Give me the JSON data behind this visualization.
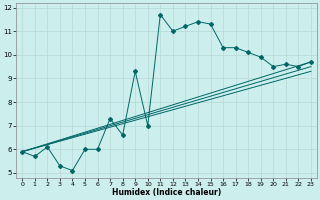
{
  "xlabel": "Humidex (Indice chaleur)",
  "bg_color": "#cceeed",
  "line_color": "#006666",
  "grid_color": "#b8d8d8",
  "xlim": [
    -0.5,
    23.5
  ],
  "ylim": [
    4.8,
    12.2
  ],
  "xticks": [
    0,
    1,
    2,
    3,
    4,
    5,
    6,
    7,
    8,
    9,
    10,
    11,
    12,
    13,
    14,
    15,
    16,
    17,
    18,
    19,
    20,
    21,
    22,
    23
  ],
  "yticks": [
    5,
    6,
    7,
    8,
    9,
    10,
    11,
    12
  ],
  "main_series_x": [
    0,
    1,
    2,
    3,
    4,
    5,
    6,
    7,
    8,
    9,
    10,
    11,
    12,
    13,
    14,
    15,
    16,
    17,
    18,
    19,
    20,
    21,
    22,
    23
  ],
  "main_series_y": [
    5.9,
    5.7,
    6.1,
    5.3,
    5.1,
    6.0,
    6.0,
    7.3,
    6.6,
    9.3,
    7.0,
    11.7,
    11.0,
    11.2,
    11.4,
    11.3,
    10.3,
    10.3,
    10.1,
    9.9,
    9.5,
    9.6,
    9.5,
    9.7
  ],
  "straight_lines": [
    {
      "x": [
        0,
        23
      ],
      "y": [
        5.9,
        9.3
      ]
    },
    {
      "x": [
        0,
        23
      ],
      "y": [
        5.9,
        9.5
      ]
    },
    {
      "x": [
        0,
        23
      ],
      "y": [
        5.9,
        9.7
      ]
    }
  ]
}
